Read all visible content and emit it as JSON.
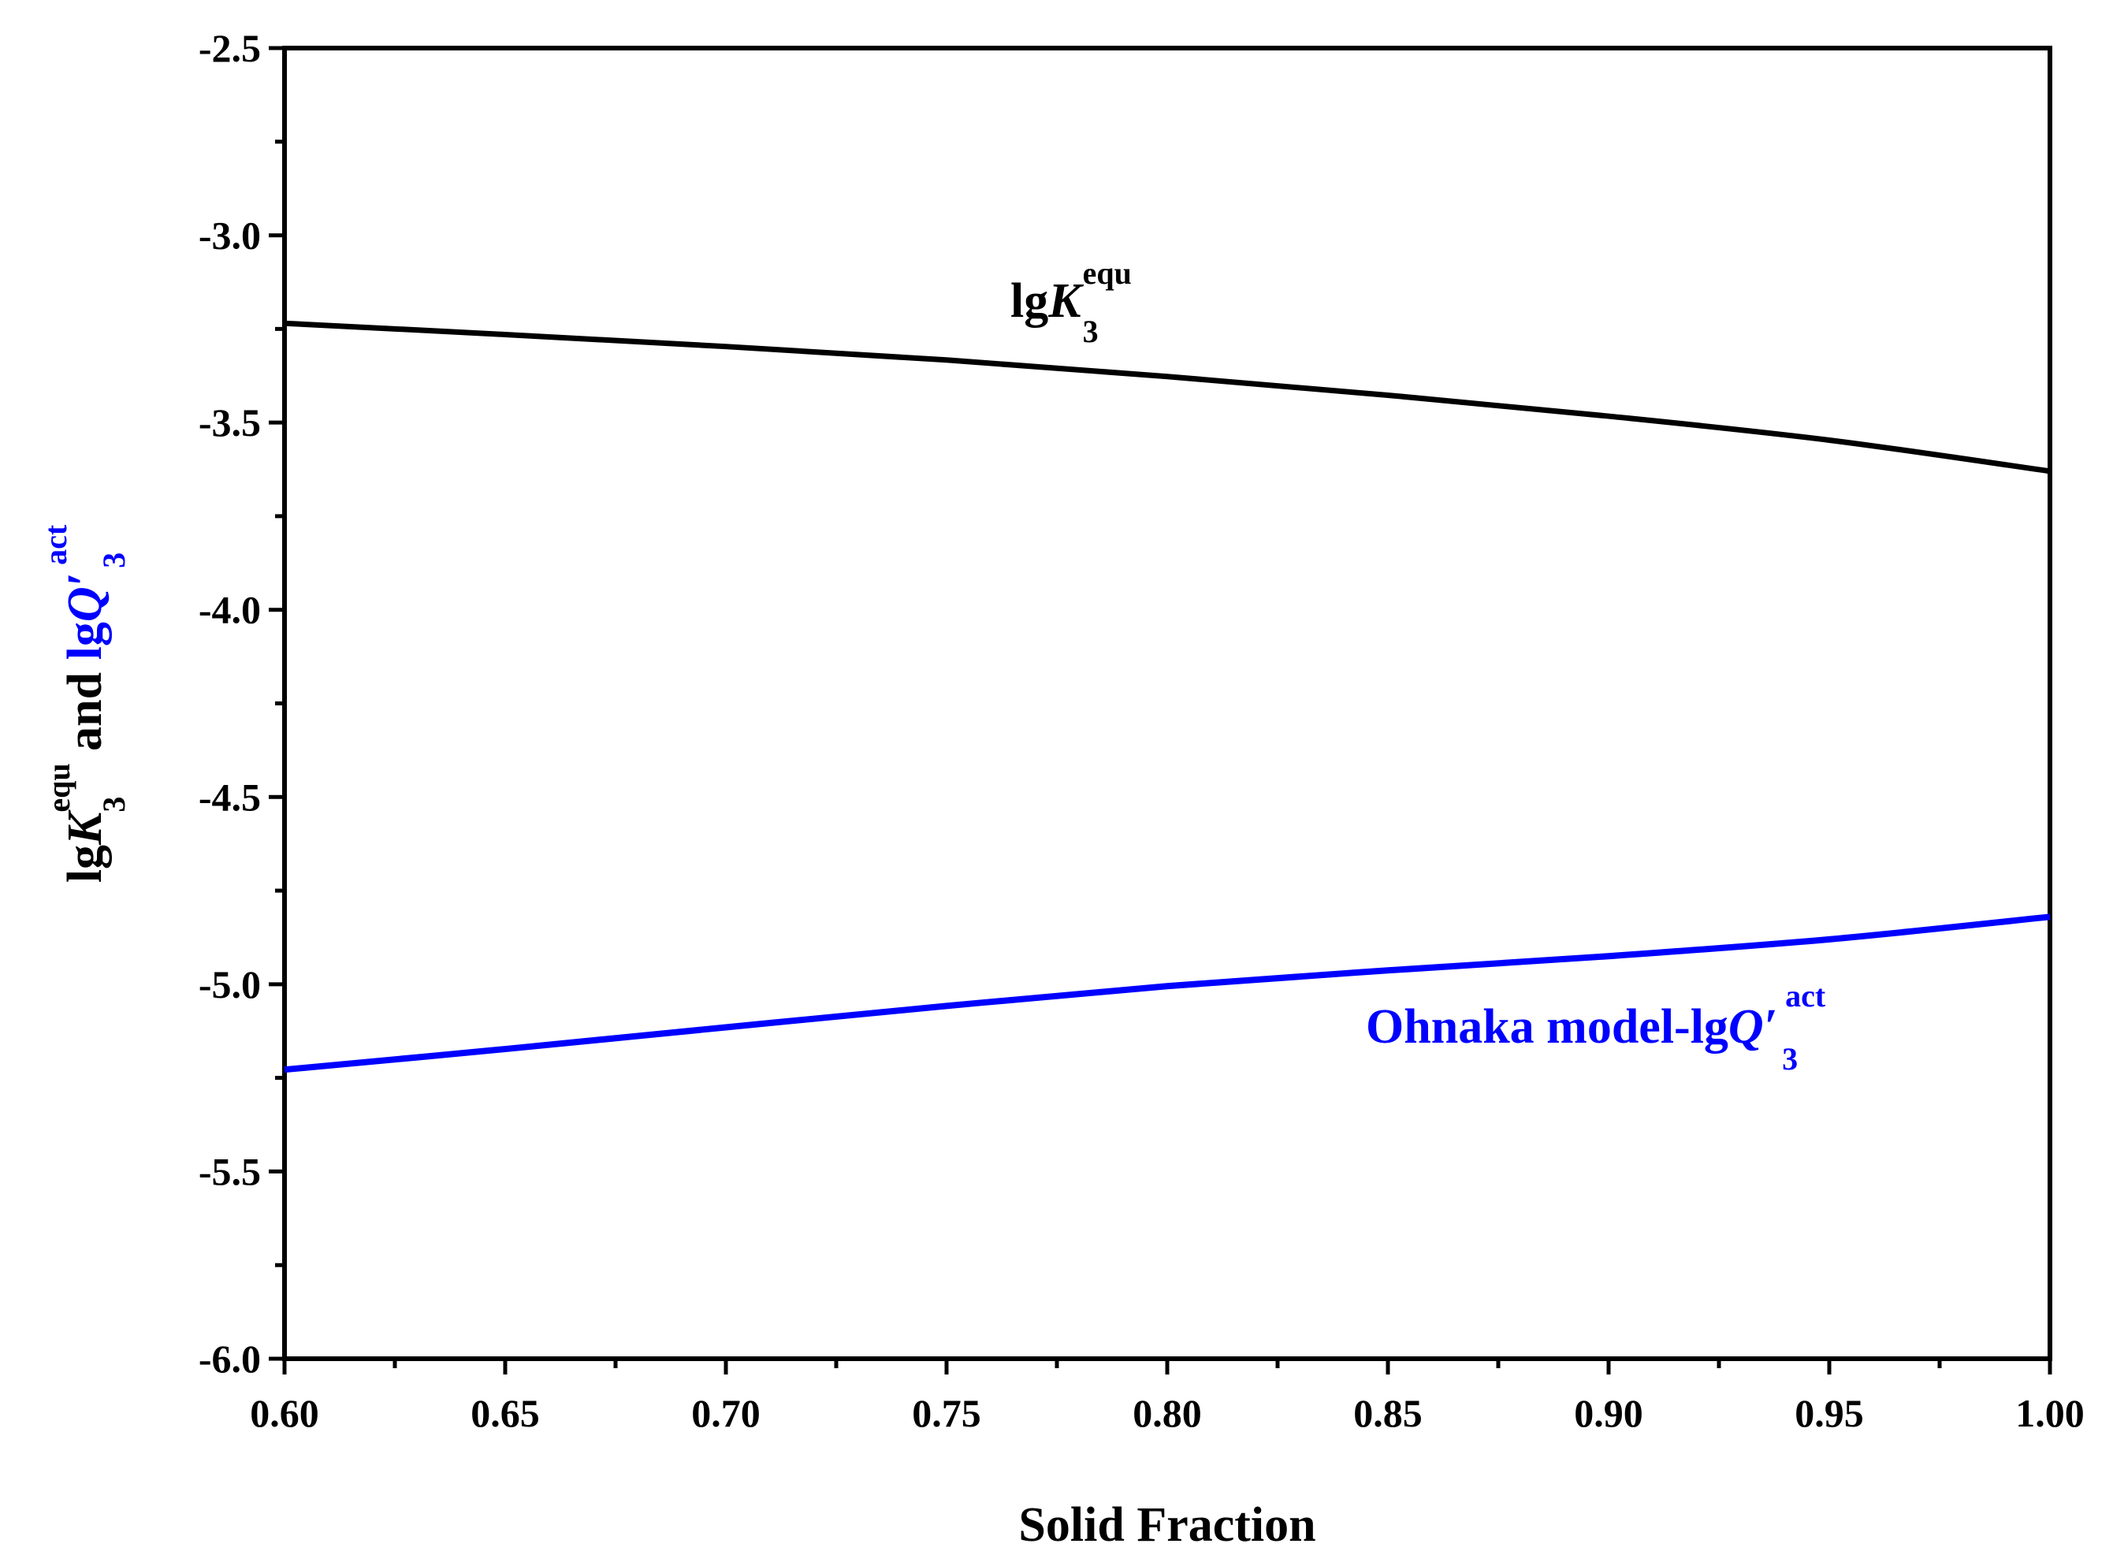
{
  "chart_data": {
    "type": "line",
    "title": "",
    "xlabel": "Solid Fraction",
    "ylabel": {
      "black_part": {
        "prefix": "lg",
        "symbol": "K",
        "subscript": "3",
        "superscript": "equ",
        "connector": " and "
      },
      "blue_part": {
        "prefix": "lg",
        "symbol": "Q′",
        "subscript": "3",
        "superscript": "act"
      }
    },
    "xlim": [
      0.6,
      1.0
    ],
    "ylim": [
      -6.0,
      -2.5
    ],
    "x_ticks": [
      "0.60",
      "0.65",
      "0.70",
      "0.75",
      "0.80",
      "0.85",
      "0.90",
      "0.95",
      "1.00"
    ],
    "y_ticks": [
      "-2.5",
      "-3.0",
      "-3.5",
      "-4.0",
      "-4.5",
      "-5.0",
      "-5.5",
      "-6.0"
    ],
    "grid": false,
    "series": [
      {
        "name": "lgK3equ",
        "color": "#000000",
        "x": [
          0.6,
          0.65,
          0.7,
          0.75,
          0.8,
          0.85,
          0.9,
          0.95,
          1.0
        ],
        "y": [
          -3.235,
          -3.265,
          -3.297,
          -3.333,
          -3.377,
          -3.427,
          -3.483,
          -3.547,
          -3.63
        ]
      },
      {
        "name": "Ohnaka model-lgQ'3act",
        "color": "#0000ff",
        "x": [
          0.6,
          0.65,
          0.7,
          0.75,
          0.8,
          0.85,
          0.9,
          0.95,
          1.0
        ],
        "y": [
          -5.228,
          -5.173,
          -5.115,
          -5.058,
          -5.005,
          -4.963,
          -4.925,
          -4.88,
          -4.82
        ]
      }
    ],
    "annotations": [
      {
        "id": "black",
        "color": "#000000",
        "prefix": "lg",
        "symbol": "K",
        "subscript": "3",
        "superscript": "equ"
      },
      {
        "id": "blue",
        "color": "#0000ff",
        "prefix": "Ohnaka model-lg",
        "symbol": "Q′",
        "subscript": "3",
        "superscript": "act"
      }
    ]
  }
}
